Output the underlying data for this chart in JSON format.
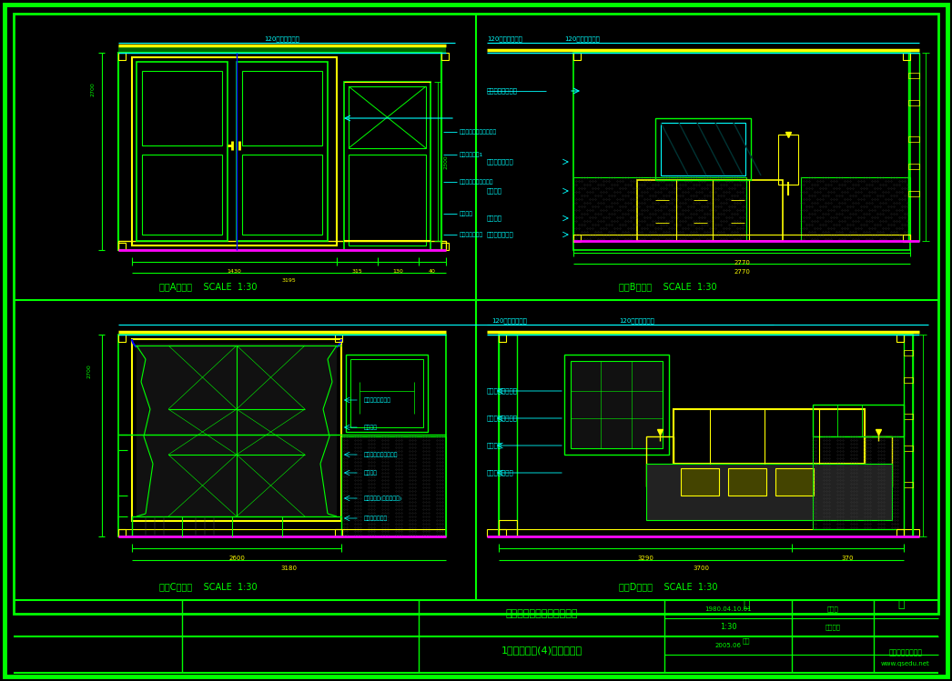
{
  "bg_color": "#000000",
  "gc": "#00ff00",
  "cc": "#00ffff",
  "yc": "#ffff00",
  "mc": "#ff00ff",
  "bc": "#0000ff",
  "fig_width": 10.46,
  "fig_height": 7.49,
  "title_main": "大连亿达第五期样板房工程",
  "title_sub": "1号碧桦板房(4)主卧立面图",
  "scale_text": "SCALE  1:30",
  "label_A": "主卧A立面图",
  "label_B": "主卧B立面图",
  "label_C": "主卧C立面图",
  "label_D": "主卧D立面图",
  "watermark1": "齐生设计职业学校",
  "watermark2": "www.qsedu.net"
}
